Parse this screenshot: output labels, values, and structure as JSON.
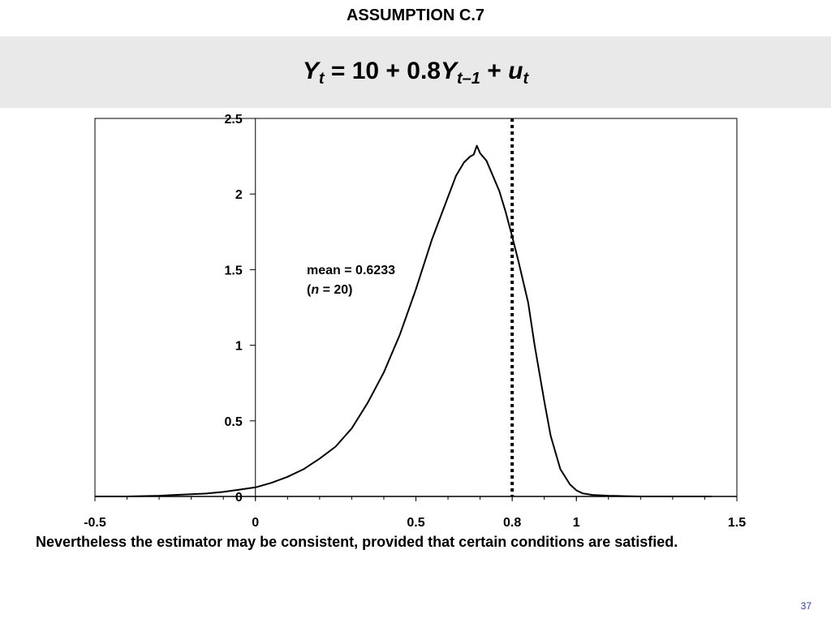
{
  "slide": {
    "title": "ASSUMPTION C.7",
    "equation": {
      "y": "Y",
      "t": "t",
      "rhs": "= 10 + 0.8",
      "y2": "Y",
      "lag": "t–1",
      "plus": "+",
      "u": "u",
      "t2": "t"
    },
    "footnote": "Nevertheless the estimator may be consistent, provided that certain conditions are satisfied.",
    "page_number": "37"
  },
  "chart_data": {
    "type": "line",
    "xlim": [
      -0.5,
      1.5
    ],
    "ylim": [
      0,
      2.5
    ],
    "x_ticks": [
      {
        "value": -0.5,
        "label": "-0.5"
      },
      {
        "value": 0,
        "label": "0"
      },
      {
        "value": 0.5,
        "label": "0.5"
      },
      {
        "value": 0.8,
        "label": "0.8"
      },
      {
        "value": 1,
        "label": "1"
      },
      {
        "value": 1.5,
        "label": "1.5"
      }
    ],
    "y_ticks": [
      {
        "value": 0,
        "label": "0"
      },
      {
        "value": 0.5,
        "label": "0.5"
      },
      {
        "value": 1,
        "label": "1"
      },
      {
        "value": 1.5,
        "label": "1.5"
      },
      {
        "value": 2,
        "label": "2"
      },
      {
        "value": 2.5,
        "label": "2.5"
      }
    ],
    "reference_line": {
      "x": 0.8,
      "style": "dotted"
    },
    "annotation": {
      "line1": "mean = 0.6233",
      "line2_open": "(",
      "line2_var": "n",
      "line2_rest": " = 20)",
      "x": 0.16,
      "y": 1.47
    },
    "grid": false,
    "series": [
      {
        "x": [
          -0.5,
          -0.4,
          -0.3,
          -0.25,
          -0.2,
          -0.15,
          -0.1,
          -0.05,
          0,
          0.05,
          0.1,
          0.15,
          0.2,
          0.25,
          0.3,
          0.35,
          0.4,
          0.45,
          0.5,
          0.55,
          0.6,
          0.625,
          0.65,
          0.67,
          0.68,
          0.69,
          0.7,
          0.72,
          0.74,
          0.76,
          0.78,
          0.8,
          0.82,
          0.85,
          0.87,
          0.9,
          0.92,
          0.95,
          0.98,
          1.0,
          1.02,
          1.05,
          1.1,
          1.15,
          1.2,
          1.3,
          1.42
        ],
        "y": [
          0.0,
          0.0,
          0.005,
          0.01,
          0.015,
          0.02,
          0.03,
          0.045,
          0.06,
          0.09,
          0.13,
          0.18,
          0.25,
          0.33,
          0.45,
          0.62,
          0.82,
          1.07,
          1.37,
          1.7,
          1.98,
          2.12,
          2.21,
          2.25,
          2.26,
          2.32,
          2.27,
          2.22,
          2.12,
          2.02,
          1.88,
          1.72,
          1.55,
          1.28,
          1.0,
          0.63,
          0.4,
          0.18,
          0.08,
          0.04,
          0.02,
          0.01,
          0.005,
          0.002,
          0.0,
          0.0,
          0.0
        ]
      }
    ]
  }
}
